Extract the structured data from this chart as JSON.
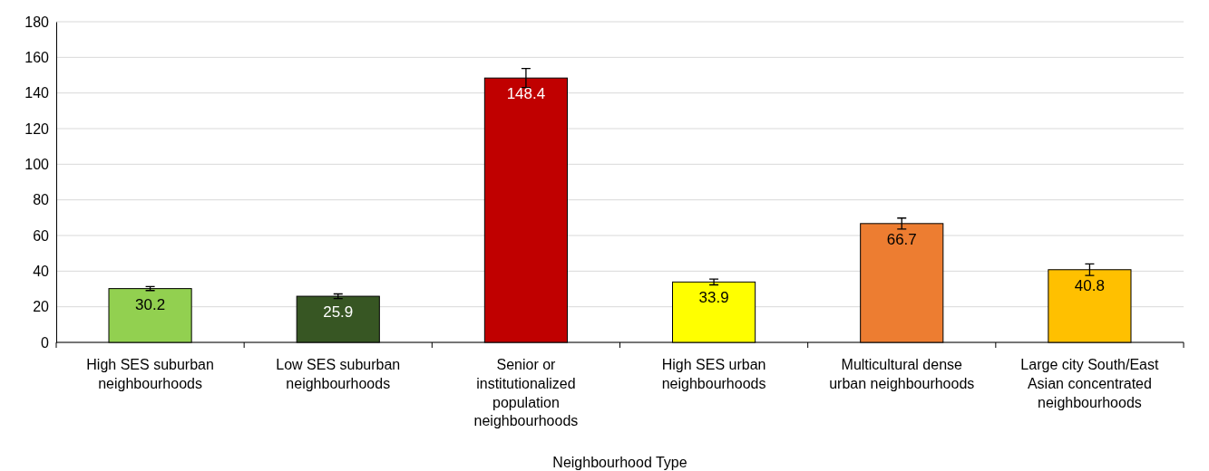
{
  "chart_data": {
    "type": "bar",
    "xlabel": "Neighbourhood Type",
    "categories": [
      "High SES suburban neighbourhoods",
      "Low SES suburban neighbourhoods",
      "Senior or institutionalized population neighbourhoods",
      "High SES urban neighbourhoods",
      "Multicultural dense urban neighbourhoods",
      "Large city South/East Asian concentrated neighbourhoods"
    ],
    "values": [
      30.2,
      25.9,
      148.4,
      33.9,
      66.7,
      40.8
    ],
    "colors": [
      "#92d050",
      "#375623",
      "#c00000",
      "#ffff00",
      "#ed7d31",
      "#ffc000"
    ],
    "errors": [
      1.1,
      1.3,
      5.3,
      1.6,
      3.1,
      3.2
    ],
    "ylim": [
      0,
      180
    ],
    "yticks": [
      0,
      20,
      40,
      60,
      80,
      100,
      120,
      140,
      160,
      180
    ],
    "grid": "y",
    "data_labels": true
  }
}
